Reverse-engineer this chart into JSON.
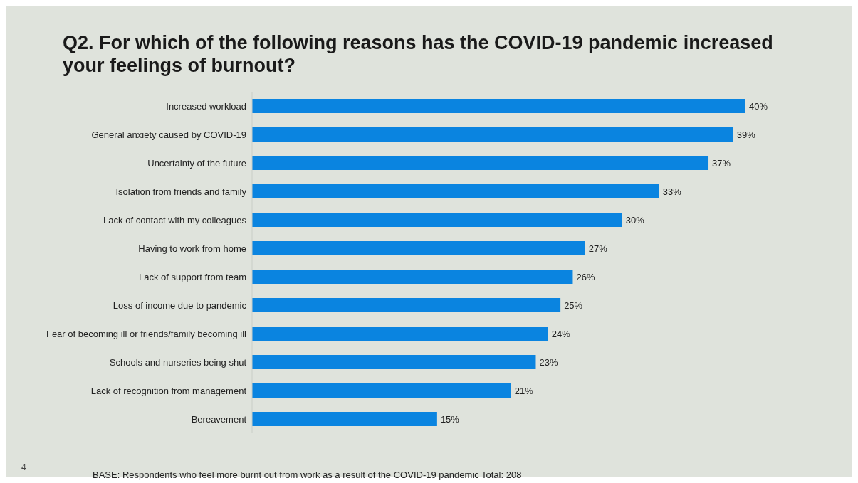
{
  "chart_data": {
    "type": "bar",
    "orientation": "horizontal",
    "title": "Q2. For which of the following reasons has the COVID-19 pandemic increased your feelings of burnout?",
    "categories": [
      "Increased workload",
      "General anxiety caused by COVID-19",
      "Uncertainty of the future",
      "Isolation from friends and family",
      "Lack of contact with my colleagues",
      "Having to work from home",
      "Lack of support from team",
      "Loss of income due to pandemic",
      "Fear of becoming ill or friends/family becoming ill",
      "Schools and nurseries being shut",
      "Lack of recognition from management",
      "Bereavement"
    ],
    "values": [
      40,
      39,
      37,
      33,
      30,
      27,
      26,
      25,
      24,
      23,
      21,
      15
    ],
    "value_labels": [
      "40%",
      "39%",
      "37%",
      "33%",
      "30%",
      "27%",
      "26%",
      "25%",
      "24%",
      "23%",
      "21%",
      "15%"
    ],
    "color": "#0a84e0",
    "tick_labels": "y",
    "annotations": [
      "4",
      "BASE: Respondents who feel more burnt out from work as a result of the COVID-19 pandemic Total: 208"
    ]
  }
}
